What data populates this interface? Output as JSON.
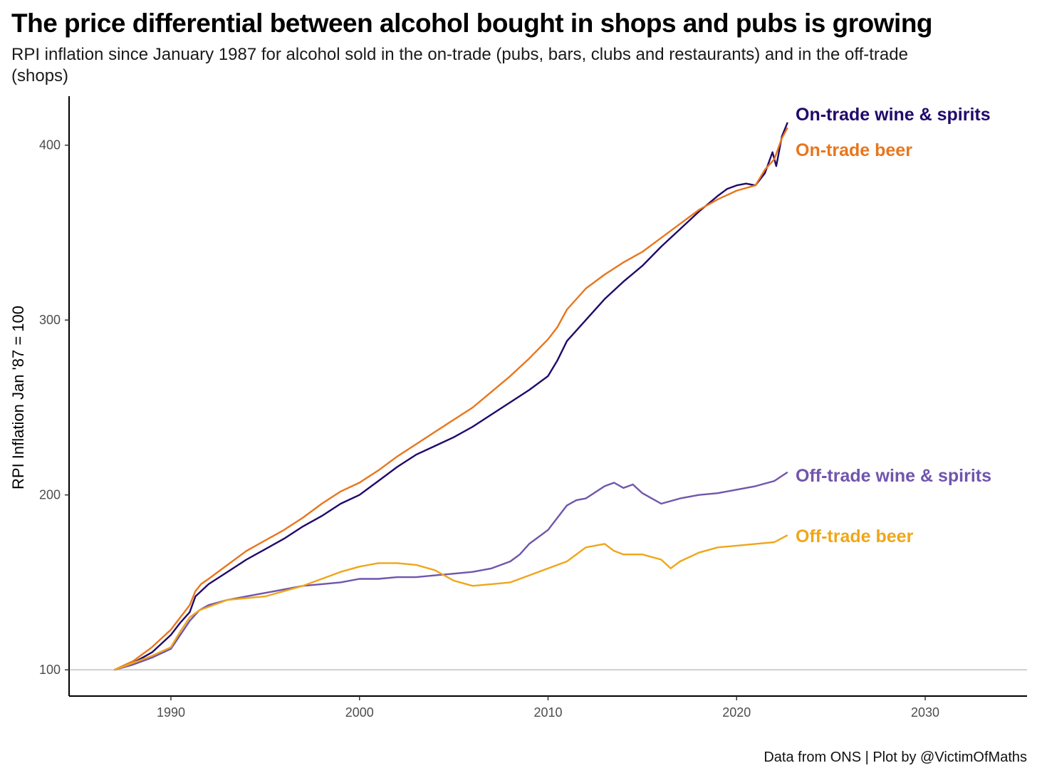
{
  "chart_data": {
    "type": "line",
    "title": "The price differential between alcohol bought in shops and pubs is growing",
    "subtitle": "RPI inflation since January 1987 for alcohol sold in the on-trade (pubs, bars, clubs and restaurants) and in the off-trade (shops)",
    "caption": "Data from ONS | Plot by @VictimOfMaths",
    "ylabel": "RPI Inflation Jan '87 = 100",
    "xlabel": "",
    "xlim": [
      1984.6,
      2035.4
    ],
    "ylim": [
      85,
      428
    ],
    "x_ticks": [
      1990,
      2000,
      2010,
      2020,
      2030
    ],
    "y_ticks": [
      100,
      200,
      300,
      400
    ],
    "reference_line": 100,
    "grid": false,
    "legend": "direct-labels-right",
    "series": [
      {
        "name": "On-trade wine & spirits",
        "color": "#21096b",
        "x": [
          1987.0,
          1988.0,
          1989.0,
          1990.0,
          1990.5,
          1991.0,
          1991.3,
          1991.6,
          1992.0,
          1993.0,
          1994.0,
          1995.0,
          1996.0,
          1997.0,
          1998.0,
          1999.0,
          2000.0,
          2001.0,
          2002.0,
          2003.0,
          2004.0,
          2005.0,
          2006.0,
          2007.0,
          2008.0,
          2009.0,
          2010.0,
          2010.5,
          2011.0,
          2012.0,
          2013.0,
          2014.0,
          2015.0,
          2016.0,
          2017.0,
          2018.0,
          2019.0,
          2019.5,
          2020.0,
          2020.5,
          2021.0,
          2021.5,
          2021.9,
          2022.1,
          2022.4,
          2022.7
        ],
        "y": [
          100,
          104,
          110,
          120,
          127,
          133,
          142,
          145,
          149,
          156,
          163,
          169,
          175,
          182,
          188,
          195,
          200,
          208,
          216,
          223,
          228,
          233,
          239,
          246,
          253,
          260,
          268,
          277,
          288,
          300,
          312,
          322,
          331,
          342,
          352,
          362,
          371,
          375,
          377,
          378,
          377,
          384,
          396,
          388,
          405,
          413
        ]
      },
      {
        "name": "On-trade beer",
        "color": "#e8761c",
        "x": [
          1987.0,
          1988.0,
          1989.0,
          1990.0,
          1990.5,
          1991.0,
          1991.3,
          1991.6,
          1992.0,
          1993.0,
          1994.0,
          1995.0,
          1996.0,
          1997.0,
          1998.0,
          1999.0,
          2000.0,
          2001.0,
          2002.0,
          2003.0,
          2004.0,
          2005.0,
          2006.0,
          2007.0,
          2008.0,
          2009.0,
          2010.0,
          2010.5,
          2011.0,
          2012.0,
          2013.0,
          2014.0,
          2015.0,
          2016.0,
          2017.0,
          2018.0,
          2019.0,
          2020.0,
          2021.0,
          2021.5,
          2022.0,
          2022.4,
          2022.7
        ],
        "y": [
          100,
          105,
          113,
          123,
          130,
          137,
          145,
          149,
          152,
          160,
          168,
          174,
          180,
          187,
          195,
          202,
          207,
          214,
          222,
          229,
          236,
          243,
          250,
          259,
          268,
          278,
          289,
          296,
          306,
          318,
          326,
          333,
          339,
          347,
          355,
          363,
          369,
          374,
          377,
          386,
          392,
          404,
          410
        ]
      },
      {
        "name": "Off-trade wine & spirits",
        "color": "#7055ad",
        "x": [
          1987.0,
          1988.0,
          1989.0,
          1990.0,
          1990.5,
          1991.0,
          1991.5,
          1992.0,
          1993.0,
          1994.0,
          1995.0,
          1996.0,
          1997.0,
          1998.0,
          1999.0,
          2000.0,
          2001.0,
          2002.0,
          2003.0,
          2004.0,
          2005.0,
          2006.0,
          2007.0,
          2008.0,
          2008.5,
          2009.0,
          2010.0,
          2010.5,
          2011.0,
          2011.5,
          2012.0,
          2013.0,
          2013.5,
          2014.0,
          2014.5,
          2015.0,
          2015.5,
          2016.0,
          2017.0,
          2018.0,
          2019.0,
          2020.0,
          2021.0,
          2022.0,
          2022.7
        ],
        "y": [
          100,
          103,
          107,
          112,
          120,
          128,
          134,
          137,
          140,
          142,
          144,
          146,
          148,
          149,
          150,
          152,
          152,
          153,
          153,
          154,
          155,
          156,
          158,
          162,
          166,
          172,
          180,
          187,
          194,
          197,
          198,
          205,
          207,
          204,
          206,
          201,
          198,
          195,
          198,
          200,
          201,
          203,
          205,
          208,
          213
        ]
      },
      {
        "name": "Off-trade beer",
        "color": "#efa61a",
        "x": [
          1987.0,
          1988.0,
          1989.0,
          1990.0,
          1990.5,
          1991.0,
          1991.5,
          1992.0,
          1993.0,
          1994.0,
          1995.0,
          1996.0,
          1997.0,
          1998.0,
          1999.0,
          2000.0,
          2001.0,
          2002.0,
          2003.0,
          2004.0,
          2005.0,
          2006.0,
          2007.0,
          2008.0,
          2009.0,
          2010.0,
          2011.0,
          2012.0,
          2013.0,
          2013.5,
          2014.0,
          2015.0,
          2016.0,
          2016.5,
          2017.0,
          2018.0,
          2019.0,
          2020.0,
          2021.0,
          2022.0,
          2022.7
        ],
        "y": [
          100,
          104,
          108,
          113,
          122,
          130,
          134,
          136,
          140,
          141,
          142,
          145,
          148,
          152,
          156,
          159,
          161,
          161,
          160,
          157,
          151,
          148,
          149,
          150,
          154,
          158,
          162,
          170,
          172,
          168,
          166,
          166,
          163,
          158,
          162,
          167,
          170,
          171,
          172,
          173,
          177
        ]
      }
    ]
  }
}
